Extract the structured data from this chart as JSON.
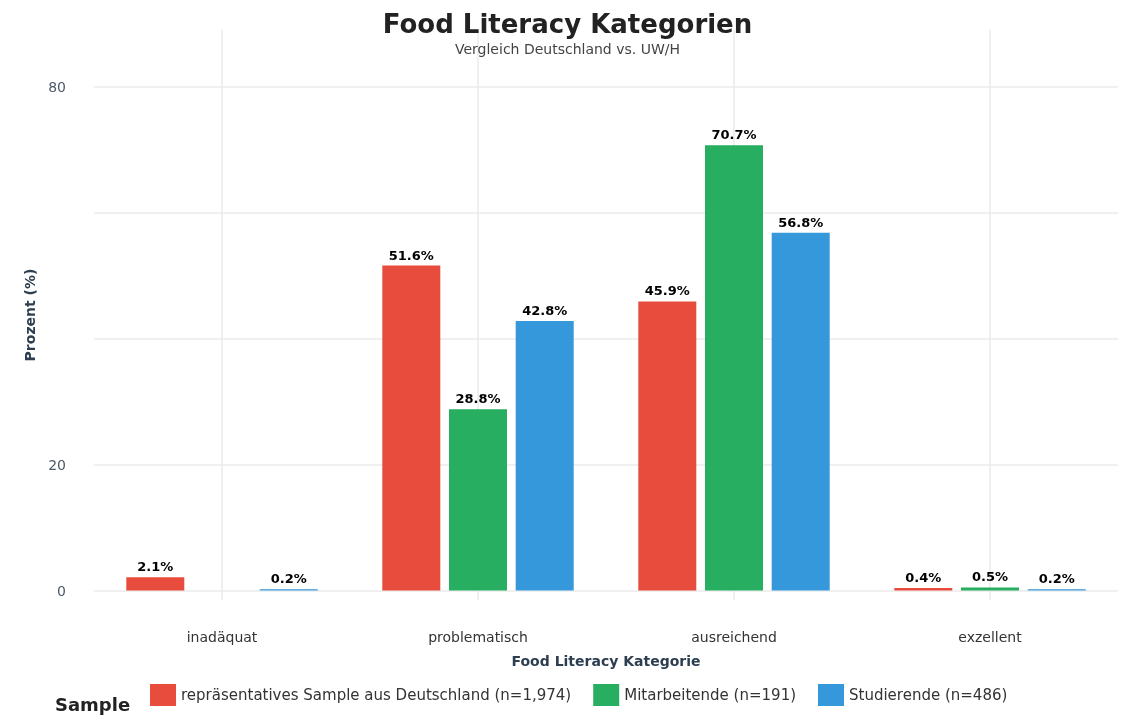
{
  "chart_data": {
    "type": "bar",
    "title": "Food Literacy Kategorien",
    "subtitle": "Vergleich Deutschland vs. UW/H",
    "xlabel": "Food Literacy Kategorie",
    "ylabel": "Prozent (%)",
    "legend_title": "Sample",
    "categories": [
      "inadäquat",
      "problematisch",
      "ausreichend",
      "exzellent"
    ],
    "series": [
      {
        "name": "repräsentatives Sample aus Deutschland (n=1,974)",
        "color": "#e74c3c",
        "values": [
          2.1,
          51.6,
          45.9,
          0.4
        ],
        "value_labels": [
          "2.1%",
          "51.6%",
          "45.9%",
          "0.4%"
        ]
      },
      {
        "name": "Mitarbeitende (n=191)",
        "color": "#27ae60",
        "values": [
          null,
          28.8,
          70.7,
          0.5
        ],
        "value_labels": [
          null,
          "28.8%",
          "70.7%",
          "0.5%"
        ]
      },
      {
        "name": "Studierende (n=486)",
        "color": "#3498db",
        "values": [
          0.2,
          42.8,
          56.8,
          0.2
        ],
        "value_labels": [
          "0.2%",
          "42.8%",
          "56.8%",
          "0.2%"
        ]
      }
    ],
    "ylim": [
      -1.5,
      89
    ],
    "yticks": [
      0,
      20,
      {
        "value": 40,
        "label": null
      },
      {
        "value": 60,
        "label": null
      },
      80
    ],
    "grid": true,
    "legend": "bottom"
  }
}
